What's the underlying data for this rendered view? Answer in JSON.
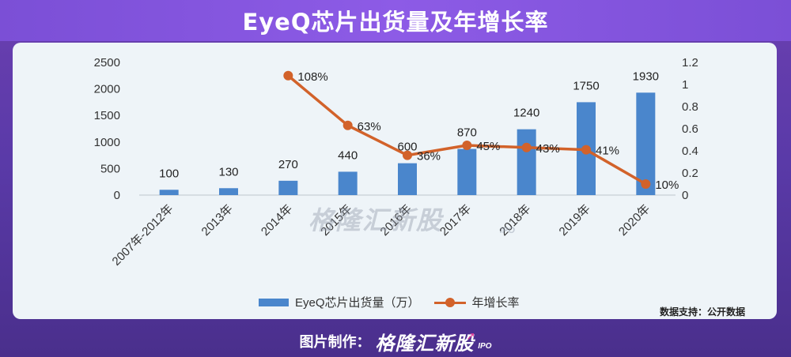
{
  "title": "EyeQ芯片出货量及年增长率",
  "footer": {
    "label": "图片制作：",
    "brand": "格隆汇新股",
    "brand_suffix": "IPO"
  },
  "watermark": {
    "brand": "格隆汇新股",
    "suffix": "IPO"
  },
  "source_note": "数据支持：公开数据",
  "chart_data": {
    "type": "bar",
    "categories": [
      "2007年-2012年",
      "2013年",
      "2014年",
      "2015年",
      "2016年",
      "2017年",
      "2018年",
      "2019年",
      "2020年"
    ],
    "series": [
      {
        "name": "EyeQ芯片出货量（万）",
        "type": "bar",
        "axis": "left",
        "color": "#4a86cc",
        "values": [
          100,
          130,
          270,
          440,
          600,
          870,
          1240,
          1750,
          1930
        ],
        "labels": [
          "100",
          "130",
          "270",
          "440",
          "600",
          "870",
          "1240",
          "1750",
          "1930"
        ]
      },
      {
        "name": "年增长率",
        "type": "line",
        "axis": "right",
        "color": "#d2622a",
        "values": [
          null,
          null,
          1.08,
          0.63,
          0.36,
          0.45,
          0.43,
          0.41,
          0.1
        ],
        "labels": [
          null,
          null,
          "108%",
          "63%",
          "36%",
          "45%",
          "43%",
          "41%",
          "10%"
        ]
      }
    ],
    "y_left": {
      "min": 0,
      "max": 2500,
      "ticks": [
        "0",
        "500",
        "1000",
        "1500",
        "2000",
        "2500"
      ]
    },
    "y_right": {
      "min": 0,
      "max": 1.2,
      "ticks": [
        "0",
        "0.2",
        "0.4",
        "0.6",
        "0.8",
        "1",
        "1.2"
      ]
    },
    "grid": false,
    "legend_position": "bottom"
  }
}
